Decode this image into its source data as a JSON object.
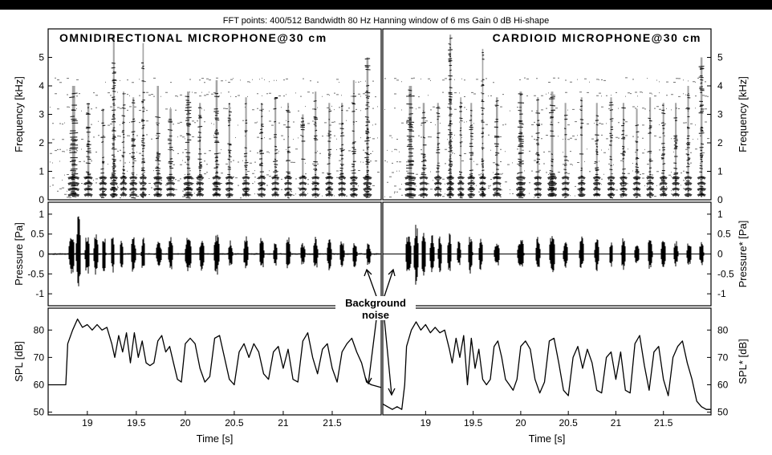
{
  "header": "FFT points: 400/512  Bandwidth 80 Hz  Hanning window of 6 ms  Gain 0 dB  Hi-shape",
  "annotation": [
    "Background",
    "noise"
  ],
  "colors": {
    "ink": "#000000",
    "background": "#ffffff",
    "top_bar": "#000000"
  },
  "chart_data": [
    {
      "type": "heatmap",
      "panel": "spectrogram-left",
      "title": "OMNIDIRECTIONAL MICROPHONE@30 cm",
      "ylabel": "Frequency [kHz]",
      "ylim": [
        0,
        6
      ],
      "yticks": [
        0,
        1,
        2,
        3,
        4,
        5
      ],
      "xlim": [
        18.6,
        22.0
      ],
      "bands_khz": [
        0.15,
        0.35,
        0.55,
        0.75,
        0.95,
        1.3,
        1.7,
        2.2,
        2.7,
        3.2,
        3.7,
        4.2
      ],
      "bursts": [
        {
          "t": 18.86,
          "w": 0.09,
          "top": 4.0,
          "d": 0.7
        },
        {
          "t": 19.01,
          "w": 0.06,
          "top": 3.4,
          "d": 0.5
        },
        {
          "t": 19.16,
          "w": 0.05,
          "top": 3.2,
          "d": 0.5
        },
        {
          "t": 19.27,
          "w": 0.05,
          "top": 5.8,
          "d": 0.9
        },
        {
          "t": 19.37,
          "w": 0.04,
          "top": 3.8,
          "d": 0.45
        },
        {
          "t": 19.47,
          "w": 0.05,
          "top": 3.6,
          "d": 0.5
        },
        {
          "t": 19.57,
          "w": 0.04,
          "top": 5.5,
          "d": 0.6
        },
        {
          "t": 19.72,
          "w": 0.06,
          "top": 4.0,
          "d": 0.4
        },
        {
          "t": 19.85,
          "w": 0.06,
          "top": 3.2,
          "d": 0.4
        },
        {
          "t": 20.03,
          "w": 0.07,
          "top": 3.8,
          "d": 0.55
        },
        {
          "t": 20.15,
          "w": 0.05,
          "top": 3.4,
          "d": 0.5
        },
        {
          "t": 20.32,
          "w": 0.06,
          "top": 4.2,
          "d": 0.6
        },
        {
          "t": 20.45,
          "w": 0.05,
          "top": 3.4,
          "d": 0.4
        },
        {
          "t": 20.62,
          "w": 0.05,
          "top": 3.6,
          "d": 0.45
        },
        {
          "t": 20.78,
          "w": 0.05,
          "top": 3.4,
          "d": 0.5
        },
        {
          "t": 20.92,
          "w": 0.05,
          "top": 3.6,
          "d": 0.45
        },
        {
          "t": 21.05,
          "w": 0.05,
          "top": 3.4,
          "d": 0.45
        },
        {
          "t": 21.2,
          "w": 0.05,
          "top": 3.0,
          "d": 0.4
        },
        {
          "t": 21.33,
          "w": 0.05,
          "top": 3.8,
          "d": 0.45
        },
        {
          "t": 21.47,
          "w": 0.05,
          "top": 3.4,
          "d": 0.5
        },
        {
          "t": 21.6,
          "w": 0.05,
          "top": 3.4,
          "d": 0.4
        },
        {
          "t": 21.72,
          "w": 0.05,
          "top": 4.2,
          "d": 0.45
        },
        {
          "t": 21.86,
          "w": 0.06,
          "top": 5.0,
          "d": 0.55
        }
      ]
    },
    {
      "type": "heatmap",
      "panel": "spectrogram-right",
      "title": "CARDIOID MICROPHONE@30 cm",
      "ylabel": "Frequency [kHz]",
      "ylim": [
        0,
        6
      ],
      "yticks": [
        0,
        1,
        2,
        3,
        4,
        5
      ],
      "xlim": [
        18.55,
        22.0
      ],
      "bands_khz": [
        0.15,
        0.35,
        0.55,
        0.75,
        0.95,
        1.3,
        1.7,
        2.2,
        2.7,
        3.2,
        3.7,
        4.2
      ],
      "bursts": [
        {
          "t": 18.84,
          "w": 0.09,
          "top": 4.0,
          "d": 0.7
        },
        {
          "t": 18.98,
          "w": 0.06,
          "top": 3.4,
          "d": 0.5
        },
        {
          "t": 19.13,
          "w": 0.05,
          "top": 3.4,
          "d": 0.5
        },
        {
          "t": 19.26,
          "w": 0.05,
          "top": 5.8,
          "d": 0.9
        },
        {
          "t": 19.37,
          "w": 0.04,
          "top": 3.6,
          "d": 0.45
        },
        {
          "t": 19.48,
          "w": 0.05,
          "top": 3.4,
          "d": 0.5
        },
        {
          "t": 19.6,
          "w": 0.04,
          "top": 5.3,
          "d": 0.55
        },
        {
          "t": 19.75,
          "w": 0.06,
          "top": 3.6,
          "d": 0.4
        },
        {
          "t": 20.0,
          "w": 0.07,
          "top": 3.8,
          "d": 0.55
        },
        {
          "t": 20.18,
          "w": 0.05,
          "top": 3.6,
          "d": 0.5
        },
        {
          "t": 20.33,
          "w": 0.07,
          "top": 3.8,
          "d": 0.6
        },
        {
          "t": 20.47,
          "w": 0.05,
          "top": 3.4,
          "d": 0.4
        },
        {
          "t": 20.64,
          "w": 0.05,
          "top": 3.6,
          "d": 0.45
        },
        {
          "t": 20.8,
          "w": 0.05,
          "top": 3.4,
          "d": 0.5
        },
        {
          "t": 20.95,
          "w": 0.05,
          "top": 3.6,
          "d": 0.45
        },
        {
          "t": 21.08,
          "w": 0.05,
          "top": 3.4,
          "d": 0.45
        },
        {
          "t": 21.22,
          "w": 0.05,
          "top": 3.2,
          "d": 0.4
        },
        {
          "t": 21.36,
          "w": 0.05,
          "top": 3.6,
          "d": 0.45
        },
        {
          "t": 21.5,
          "w": 0.05,
          "top": 3.4,
          "d": 0.5
        },
        {
          "t": 21.63,
          "w": 0.05,
          "top": 3.4,
          "d": 0.4
        },
        {
          "t": 21.76,
          "w": 0.05,
          "top": 4.0,
          "d": 0.45
        },
        {
          "t": 21.9,
          "w": 0.06,
          "top": 5.0,
          "d": 0.55
        }
      ]
    },
    {
      "type": "line",
      "panel": "pressure-left",
      "ylabel": "Pressure [Pa]",
      "ylim": [
        -1.3,
        1.3
      ],
      "yticks": [
        -1,
        -0.5,
        0,
        0.5,
        1
      ],
      "xlim": [
        18.6,
        22.0
      ],
      "noise_floor": 0.02,
      "bursts": [
        {
          "t": 18.84,
          "w": 0.06,
          "a": 0.6
        },
        {
          "t": 18.91,
          "w": 0.05,
          "a": 1.0
        },
        {
          "t": 19.0,
          "w": 0.05,
          "a": 0.55
        },
        {
          "t": 19.09,
          "w": 0.05,
          "a": 0.55
        },
        {
          "t": 19.17,
          "w": 0.04,
          "a": 0.5
        },
        {
          "t": 19.26,
          "w": 0.04,
          "a": 0.55
        },
        {
          "t": 19.35,
          "w": 0.04,
          "a": 0.35
        },
        {
          "t": 19.47,
          "w": 0.05,
          "a": 0.5
        },
        {
          "t": 19.57,
          "w": 0.04,
          "a": 0.45
        },
        {
          "t": 19.73,
          "w": 0.06,
          "a": 0.35
        },
        {
          "t": 19.85,
          "w": 0.05,
          "a": 0.45
        },
        {
          "t": 20.03,
          "w": 0.07,
          "a": 0.45
        },
        {
          "t": 20.17,
          "w": 0.05,
          "a": 0.45
        },
        {
          "t": 20.32,
          "w": 0.06,
          "a": 0.55
        },
        {
          "t": 20.46,
          "w": 0.05,
          "a": 0.35
        },
        {
          "t": 20.62,
          "w": 0.05,
          "a": 0.45
        },
        {
          "t": 20.78,
          "w": 0.05,
          "a": 0.45
        },
        {
          "t": 20.92,
          "w": 0.04,
          "a": 0.35
        },
        {
          "t": 21.05,
          "w": 0.05,
          "a": 0.45
        },
        {
          "t": 21.2,
          "w": 0.05,
          "a": 0.3
        },
        {
          "t": 21.33,
          "w": 0.05,
          "a": 0.45
        },
        {
          "t": 21.47,
          "w": 0.05,
          "a": 0.45
        },
        {
          "t": 21.6,
          "w": 0.05,
          "a": 0.35
        },
        {
          "t": 21.73,
          "w": 0.05,
          "a": 0.35
        },
        {
          "t": 21.87,
          "w": 0.05,
          "a": 0.3
        }
      ]
    },
    {
      "type": "line",
      "panel": "pressure-right",
      "ylabel": "Pressure* [Pa]",
      "ylim": [
        -1.3,
        1.3
      ],
      "yticks": [
        -1,
        -0.5,
        0,
        0.5,
        1
      ],
      "xlim": [
        18.55,
        22.0
      ],
      "noise_floor": 0.01,
      "bursts": [
        {
          "t": 18.82,
          "w": 0.06,
          "a": 0.55
        },
        {
          "t": 18.9,
          "w": 0.05,
          "a": 0.8
        },
        {
          "t": 18.98,
          "w": 0.05,
          "a": 0.55
        },
        {
          "t": 19.07,
          "w": 0.05,
          "a": 0.5
        },
        {
          "t": 19.15,
          "w": 0.04,
          "a": 0.5
        },
        {
          "t": 19.25,
          "w": 0.04,
          "a": 0.55
        },
        {
          "t": 19.35,
          "w": 0.04,
          "a": 0.35
        },
        {
          "t": 19.47,
          "w": 0.05,
          "a": 0.5
        },
        {
          "t": 19.58,
          "w": 0.04,
          "a": 0.45
        },
        {
          "t": 19.75,
          "w": 0.06,
          "a": 0.35
        },
        {
          "t": 20.0,
          "w": 0.07,
          "a": 0.45
        },
        {
          "t": 20.18,
          "w": 0.05,
          "a": 0.45
        },
        {
          "t": 20.33,
          "w": 0.06,
          "a": 0.55
        },
        {
          "t": 20.47,
          "w": 0.05,
          "a": 0.35
        },
        {
          "t": 20.64,
          "w": 0.05,
          "a": 0.45
        },
        {
          "t": 20.8,
          "w": 0.05,
          "a": 0.45
        },
        {
          "t": 20.95,
          "w": 0.04,
          "a": 0.35
        },
        {
          "t": 21.08,
          "w": 0.05,
          "a": 0.45
        },
        {
          "t": 21.22,
          "w": 0.05,
          "a": 0.3
        },
        {
          "t": 21.36,
          "w": 0.05,
          "a": 0.45
        },
        {
          "t": 21.5,
          "w": 0.05,
          "a": 0.45
        },
        {
          "t": 21.63,
          "w": 0.05,
          "a": 0.35
        },
        {
          "t": 21.77,
          "w": 0.05,
          "a": 0.35
        },
        {
          "t": 21.9,
          "w": 0.05,
          "a": 0.3
        }
      ]
    },
    {
      "type": "line",
      "panel": "spl-left",
      "ylabel": "SPL [dB]",
      "xlabel": "Time [s]",
      "ylim": [
        49,
        88
      ],
      "yticks": [
        50,
        60,
        70,
        80
      ],
      "xlim": [
        18.6,
        22.0
      ],
      "xticks": [
        19,
        19.5,
        20,
        20.5,
        21,
        21.5
      ],
      "xticklabels": [
        "19",
        "19.5",
        "20",
        "20.5",
        "21",
        "21.5"
      ],
      "points": [
        [
          18.6,
          60
        ],
        [
          18.78,
          60
        ],
        [
          18.8,
          75
        ],
        [
          18.85,
          80
        ],
        [
          18.9,
          84
        ],
        [
          18.95,
          81
        ],
        [
          19.0,
          82
        ],
        [
          19.05,
          80
        ],
        [
          19.1,
          82
        ],
        [
          19.15,
          80
        ],
        [
          19.2,
          81
        ],
        [
          19.25,
          75
        ],
        [
          19.28,
          70
        ],
        [
          19.32,
          78
        ],
        [
          19.36,
          72
        ],
        [
          19.4,
          79
        ],
        [
          19.44,
          68
        ],
        [
          19.48,
          79
        ],
        [
          19.52,
          70
        ],
        [
          19.56,
          76
        ],
        [
          19.6,
          68
        ],
        [
          19.64,
          67
        ],
        [
          19.68,
          68
        ],
        [
          19.72,
          76
        ],
        [
          19.76,
          78
        ],
        [
          19.8,
          72
        ],
        [
          19.84,
          74
        ],
        [
          19.88,
          68
        ],
        [
          19.92,
          62
        ],
        [
          19.96,
          61
        ],
        [
          20.0,
          75
        ],
        [
          20.05,
          77
        ],
        [
          20.1,
          75
        ],
        [
          20.15,
          66
        ],
        [
          20.2,
          61
        ],
        [
          20.25,
          63
        ],
        [
          20.3,
          77
        ],
        [
          20.35,
          78
        ],
        [
          20.4,
          70
        ],
        [
          20.45,
          62
        ],
        [
          20.5,
          60
        ],
        [
          20.55,
          72
        ],
        [
          20.6,
          75
        ],
        [
          20.65,
          70
        ],
        [
          20.7,
          75
        ],
        [
          20.75,
          72
        ],
        [
          20.8,
          64
        ],
        [
          20.85,
          62
        ],
        [
          20.9,
          72
        ],
        [
          20.95,
          74
        ],
        [
          21.0,
          66
        ],
        [
          21.05,
          73
        ],
        [
          21.1,
          62
        ],
        [
          21.15,
          61
        ],
        [
          21.2,
          76
        ],
        [
          21.25,
          79
        ],
        [
          21.3,
          70
        ],
        [
          21.35,
          64
        ],
        [
          21.4,
          73
        ],
        [
          21.45,
          75
        ],
        [
          21.5,
          66
        ],
        [
          21.55,
          61
        ],
        [
          21.6,
          72
        ],
        [
          21.65,
          75
        ],
        [
          21.7,
          77
        ],
        [
          21.75,
          72
        ],
        [
          21.8,
          68
        ],
        [
          21.85,
          61
        ],
        [
          21.9,
          60
        ],
        [
          22.0,
          59
        ]
      ]
    },
    {
      "type": "line",
      "panel": "spl-right",
      "ylabel": "SPL* [dB]",
      "xlabel": "Time [s]",
      "ylim": [
        49,
        88
      ],
      "yticks": [
        50,
        60,
        70,
        80
      ],
      "xlim": [
        18.55,
        22.0
      ],
      "xticks": [
        19,
        19.5,
        20,
        20.5,
        21,
        21.5
      ],
      "xticklabels": [
        "19",
        "19.5",
        "20",
        "20.5",
        "21",
        "21.5"
      ],
      "points": [
        [
          18.55,
          53
        ],
        [
          18.6,
          52
        ],
        [
          18.65,
          51
        ],
        [
          18.7,
          52
        ],
        [
          18.75,
          51
        ],
        [
          18.78,
          60
        ],
        [
          18.8,
          74
        ],
        [
          18.85,
          80
        ],
        [
          18.9,
          83
        ],
        [
          18.95,
          80
        ],
        [
          19.0,
          82
        ],
        [
          19.05,
          79
        ],
        [
          19.1,
          81
        ],
        [
          19.15,
          79
        ],
        [
          19.2,
          80
        ],
        [
          19.25,
          73
        ],
        [
          19.28,
          68
        ],
        [
          19.32,
          77
        ],
        [
          19.36,
          70
        ],
        [
          19.4,
          78
        ],
        [
          19.44,
          60
        ],
        [
          19.48,
          77
        ],
        [
          19.52,
          66
        ],
        [
          19.56,
          73
        ],
        [
          19.6,
          62
        ],
        [
          19.64,
          60
        ],
        [
          19.68,
          62
        ],
        [
          19.72,
          74
        ],
        [
          19.76,
          76
        ],
        [
          19.8,
          70
        ],
        [
          19.84,
          62
        ],
        [
          19.88,
          60
        ],
        [
          19.92,
          58
        ],
        [
          19.96,
          62
        ],
        [
          20.0,
          74
        ],
        [
          20.05,
          76
        ],
        [
          20.1,
          73
        ],
        [
          20.15,
          62
        ],
        [
          20.2,
          57
        ],
        [
          20.25,
          61
        ],
        [
          20.3,
          76
        ],
        [
          20.35,
          77
        ],
        [
          20.4,
          68
        ],
        [
          20.45,
          58
        ],
        [
          20.5,
          56
        ],
        [
          20.55,
          70
        ],
        [
          20.6,
          74
        ],
        [
          20.65,
          66
        ],
        [
          20.7,
          73
        ],
        [
          20.75,
          68
        ],
        [
          20.8,
          58
        ],
        [
          20.85,
          57
        ],
        [
          20.9,
          70
        ],
        [
          20.95,
          72
        ],
        [
          21.0,
          62
        ],
        [
          21.05,
          72
        ],
        [
          21.1,
          58
        ],
        [
          21.15,
          57
        ],
        [
          21.2,
          75
        ],
        [
          21.25,
          78
        ],
        [
          21.3,
          67
        ],
        [
          21.35,
          58
        ],
        [
          21.4,
          72
        ],
        [
          21.45,
          74
        ],
        [
          21.5,
          62
        ],
        [
          21.55,
          56
        ],
        [
          21.6,
          70
        ],
        [
          21.65,
          74
        ],
        [
          21.7,
          76
        ],
        [
          21.75,
          68
        ],
        [
          21.8,
          62
        ],
        [
          21.85,
          54
        ],
        [
          21.9,
          52
        ],
        [
          21.95,
          51
        ],
        [
          22.0,
          51
        ]
      ]
    }
  ]
}
